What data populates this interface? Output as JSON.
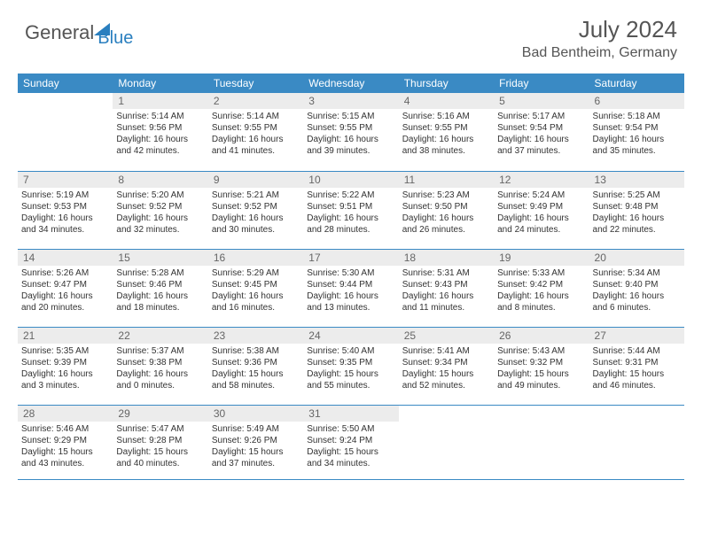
{
  "brand": {
    "part1": "General",
    "part2": "Blue"
  },
  "title": "July 2024",
  "location": "Bad Bentheim, Germany",
  "colors": {
    "header_bg": "#3a8ac4",
    "header_text": "#ffffff",
    "daynum_bg": "#ececec",
    "border": "#3a8ac4",
    "logo_accent": "#2a7fbf",
    "text": "#333333"
  },
  "weekdays": [
    "Sunday",
    "Monday",
    "Tuesday",
    "Wednesday",
    "Thursday",
    "Friday",
    "Saturday"
  ],
  "first_weekday_offset": 1,
  "days": [
    {
      "n": 1,
      "sr": "5:14 AM",
      "ss": "9:56 PM",
      "dl": "16 hours and 42 minutes."
    },
    {
      "n": 2,
      "sr": "5:14 AM",
      "ss": "9:55 PM",
      "dl": "16 hours and 41 minutes."
    },
    {
      "n": 3,
      "sr": "5:15 AM",
      "ss": "9:55 PM",
      "dl": "16 hours and 39 minutes."
    },
    {
      "n": 4,
      "sr": "5:16 AM",
      "ss": "9:55 PM",
      "dl": "16 hours and 38 minutes."
    },
    {
      "n": 5,
      "sr": "5:17 AM",
      "ss": "9:54 PM",
      "dl": "16 hours and 37 minutes."
    },
    {
      "n": 6,
      "sr": "5:18 AM",
      "ss": "9:54 PM",
      "dl": "16 hours and 35 minutes."
    },
    {
      "n": 7,
      "sr": "5:19 AM",
      "ss": "9:53 PM",
      "dl": "16 hours and 34 minutes."
    },
    {
      "n": 8,
      "sr": "5:20 AM",
      "ss": "9:52 PM",
      "dl": "16 hours and 32 minutes."
    },
    {
      "n": 9,
      "sr": "5:21 AM",
      "ss": "9:52 PM",
      "dl": "16 hours and 30 minutes."
    },
    {
      "n": 10,
      "sr": "5:22 AM",
      "ss": "9:51 PM",
      "dl": "16 hours and 28 minutes."
    },
    {
      "n": 11,
      "sr": "5:23 AM",
      "ss": "9:50 PM",
      "dl": "16 hours and 26 minutes."
    },
    {
      "n": 12,
      "sr": "5:24 AM",
      "ss": "9:49 PM",
      "dl": "16 hours and 24 minutes."
    },
    {
      "n": 13,
      "sr": "5:25 AM",
      "ss": "9:48 PM",
      "dl": "16 hours and 22 minutes."
    },
    {
      "n": 14,
      "sr": "5:26 AM",
      "ss": "9:47 PM",
      "dl": "16 hours and 20 minutes."
    },
    {
      "n": 15,
      "sr": "5:28 AM",
      "ss": "9:46 PM",
      "dl": "16 hours and 18 minutes."
    },
    {
      "n": 16,
      "sr": "5:29 AM",
      "ss": "9:45 PM",
      "dl": "16 hours and 16 minutes."
    },
    {
      "n": 17,
      "sr": "5:30 AM",
      "ss": "9:44 PM",
      "dl": "16 hours and 13 minutes."
    },
    {
      "n": 18,
      "sr": "5:31 AM",
      "ss": "9:43 PM",
      "dl": "16 hours and 11 minutes."
    },
    {
      "n": 19,
      "sr": "5:33 AM",
      "ss": "9:42 PM",
      "dl": "16 hours and 8 minutes."
    },
    {
      "n": 20,
      "sr": "5:34 AM",
      "ss": "9:40 PM",
      "dl": "16 hours and 6 minutes."
    },
    {
      "n": 21,
      "sr": "5:35 AM",
      "ss": "9:39 PM",
      "dl": "16 hours and 3 minutes."
    },
    {
      "n": 22,
      "sr": "5:37 AM",
      "ss": "9:38 PM",
      "dl": "16 hours and 0 minutes."
    },
    {
      "n": 23,
      "sr": "5:38 AM",
      "ss": "9:36 PM",
      "dl": "15 hours and 58 minutes."
    },
    {
      "n": 24,
      "sr": "5:40 AM",
      "ss": "9:35 PM",
      "dl": "15 hours and 55 minutes."
    },
    {
      "n": 25,
      "sr": "5:41 AM",
      "ss": "9:34 PM",
      "dl": "15 hours and 52 minutes."
    },
    {
      "n": 26,
      "sr": "5:43 AM",
      "ss": "9:32 PM",
      "dl": "15 hours and 49 minutes."
    },
    {
      "n": 27,
      "sr": "5:44 AM",
      "ss": "9:31 PM",
      "dl": "15 hours and 46 minutes."
    },
    {
      "n": 28,
      "sr": "5:46 AM",
      "ss": "9:29 PM",
      "dl": "15 hours and 43 minutes."
    },
    {
      "n": 29,
      "sr": "5:47 AM",
      "ss": "9:28 PM",
      "dl": "15 hours and 40 minutes."
    },
    {
      "n": 30,
      "sr": "5:49 AM",
      "ss": "9:26 PM",
      "dl": "15 hours and 37 minutes."
    },
    {
      "n": 31,
      "sr": "5:50 AM",
      "ss": "9:24 PM",
      "dl": "15 hours and 34 minutes."
    }
  ],
  "labels": {
    "sunrise": "Sunrise:",
    "sunset": "Sunset:",
    "daylight": "Daylight:"
  }
}
